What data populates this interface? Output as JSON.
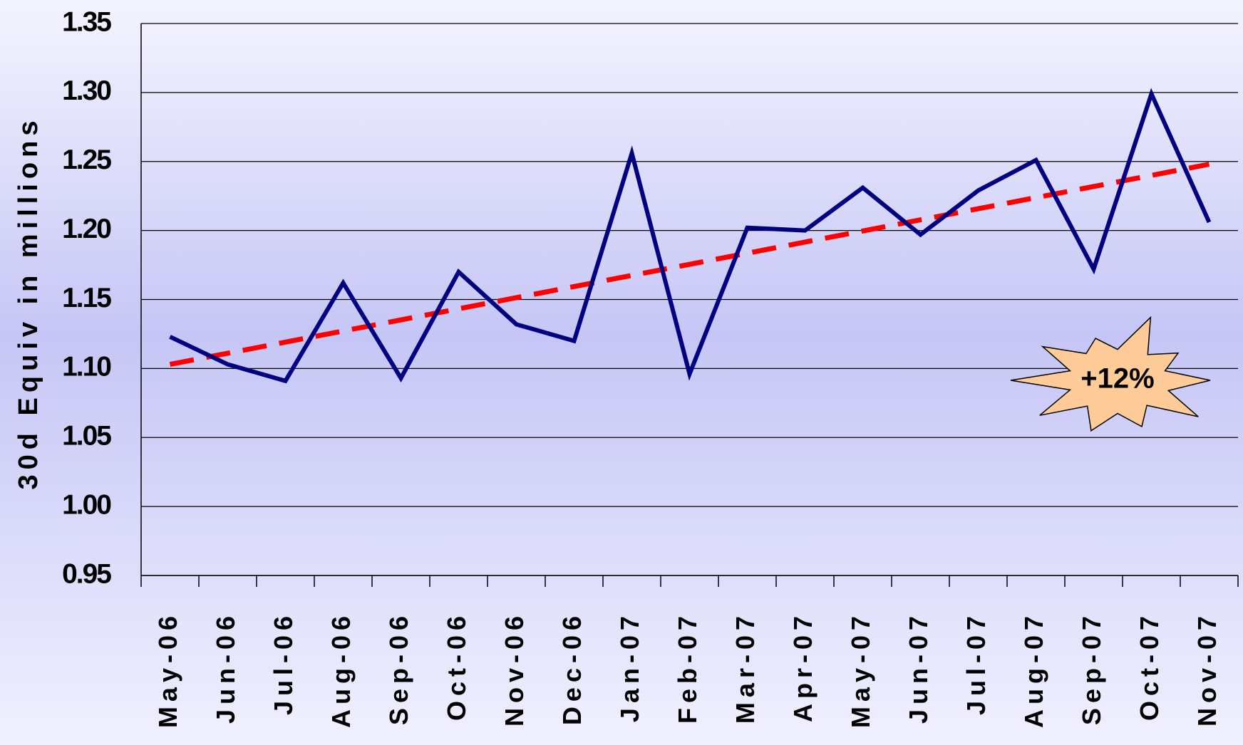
{
  "chart_data": {
    "type": "line",
    "y_label": "30d Equiv in millions",
    "annotation": "+12%",
    "categories": [
      "May-06",
      "Jun-06",
      "Jul-06",
      "Aug-06",
      "Sep-06",
      "Oct-06",
      "Nov-06",
      "Dec-06",
      "Jan-07",
      "Feb-07",
      "Mar-07",
      "Apr-07",
      "May-07",
      "Jun-07",
      "Jul-07",
      "Aug-07",
      "Sep-07",
      "Oct-07",
      "Nov-07"
    ],
    "values": [
      1.123,
      1.103,
      1.091,
      1.162,
      1.093,
      1.17,
      1.132,
      1.12,
      1.256,
      1.096,
      1.202,
      1.2,
      1.231,
      1.197,
      1.229,
      1.251,
      1.172,
      1.299,
      1.206
    ],
    "color": "#000080",
    "trend": {
      "color": "#ff0000",
      "values": [
        1.103,
        1.248
      ]
    },
    "ylim": [
      0.95,
      1.35
    ],
    "yticks": [
      0.95,
      {
        "value": 1.0,
        "label": "1.00"
      },
      1.05,
      {
        "value": 1.1,
        "label": "1.10"
      },
      1.15,
      {
        "value": 1.2,
        "label": "1.20"
      },
      1.25,
      {
        "value": 1.3,
        "label": "1.30"
      },
      1.35
    ],
    "grid": true
  }
}
